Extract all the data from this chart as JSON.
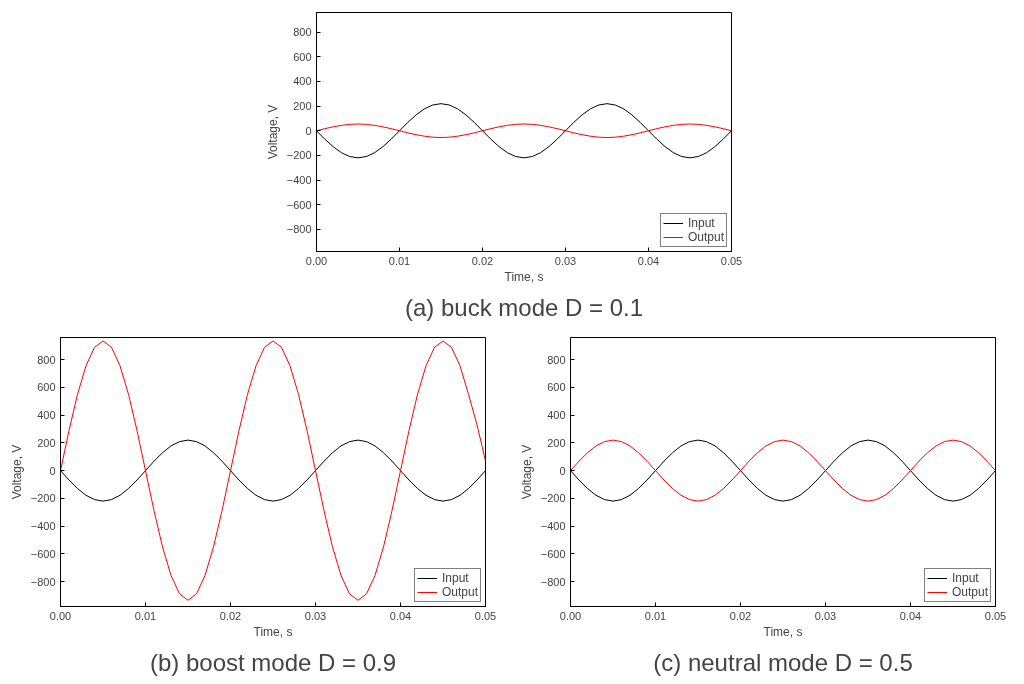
{
  "chart_data": [
    {
      "type": "line",
      "title": "(a) buck mode D = 0.1",
      "xlabel": "Time, s",
      "ylabel": "Voltage, V",
      "legend": "bottom right",
      "marker": "none",
      "line_style": "solid",
      "x": [
        0,
        0.001,
        0.002,
        0.003,
        0.004,
        0.005,
        0.006,
        0.007,
        0.008,
        0.009,
        0.01,
        0.011,
        0.012,
        0.013,
        0.014,
        0.015,
        0.016,
        0.017,
        0.018,
        0.019,
        0.02,
        0.021,
        0.022,
        0.023,
        0.024,
        0.025,
        0.026,
        0.027,
        0.028,
        0.029,
        0.03,
        0.031,
        0.032,
        0.033,
        0.034,
        0.035,
        0.036,
        0.037,
        0.038,
        0.039,
        0.04,
        0.041,
        0.042,
        0.043,
        0.044,
        0.045,
        0.046,
        0.047,
        0.048,
        0.049,
        0.05
      ],
      "series": [
        {
          "name": "Input",
          "color": "#000000",
          "values": [
            0,
            -68,
            -129,
            -178,
            -209,
            -220,
            -209,
            -178,
            -129,
            -68,
            0,
            68,
            129,
            178,
            209,
            220,
            209,
            178,
            129,
            68,
            0,
            -68,
            -129,
            -178,
            -209,
            -220,
            -209,
            -178,
            -129,
            -68,
            0,
            68,
            129,
            178,
            209,
            220,
            209,
            178,
            129,
            68,
            0,
            -68,
            -129,
            -178,
            -209,
            -220,
            -209,
            -178,
            -129,
            -68,
            0
          ]
        },
        {
          "name": "Output",
          "color": "#ff0000",
          "values": [
            0,
            17,
            32,
            44,
            52,
            55,
            52,
            44,
            32,
            17,
            0,
            -17,
            -32,
            -44,
            -52,
            -55,
            -52,
            -44,
            -32,
            -17,
            0,
            17,
            32,
            44,
            52,
            55,
            52,
            44,
            32,
            17,
            0,
            -17,
            -32,
            -44,
            -52,
            -55,
            -52,
            -44,
            -32,
            -17,
            0,
            17,
            32,
            44,
            52,
            55,
            52,
            44,
            32,
            17,
            0
          ]
        }
      ],
      "xlim": [
        0,
        0.05
      ],
      "ylim": [
        -980,
        960
      ],
      "xticks": [
        {
          "value": 0,
          "label": "0.00"
        },
        {
          "value": 0.01,
          "label": "0.01"
        },
        {
          "value": 0.02,
          "label": "0.02"
        },
        {
          "value": 0.03,
          "label": "0.03"
        },
        {
          "value": 0.04,
          "label": "0.04"
        },
        {
          "value": 0.05,
          "label": "0.05"
        }
      ],
      "yticks": [
        -800,
        -600,
        -400,
        -200,
        0,
        200,
        400,
        600,
        800
      ]
    },
    {
      "type": "line",
      "title": "(b) boost mode D = 0.9",
      "xlabel": "Time, s",
      "ylabel": "Voltage, V",
      "legend": "bottom right",
      "marker": "none",
      "line_style": "solid",
      "x": [
        0,
        0.001,
        0.002,
        0.003,
        0.004,
        0.005,
        0.006,
        0.007,
        0.008,
        0.009,
        0.01,
        0.011,
        0.012,
        0.013,
        0.014,
        0.015,
        0.016,
        0.017,
        0.018,
        0.019,
        0.02,
        0.021,
        0.022,
        0.023,
        0.024,
        0.025,
        0.026,
        0.027,
        0.028,
        0.029,
        0.03,
        0.031,
        0.032,
        0.033,
        0.034,
        0.035,
        0.036,
        0.037,
        0.038,
        0.039,
        0.04,
        0.041,
        0.042,
        0.043,
        0.044,
        0.045,
        0.046,
        0.047,
        0.048,
        0.049,
        0.05
      ],
      "series": [
        {
          "name": "Input",
          "color": "#000000",
          "values": [
            0,
            -68,
            -129,
            -178,
            -209,
            -220,
            -209,
            -178,
            -129,
            -68,
            0,
            68,
            129,
            178,
            209,
            220,
            209,
            178,
            129,
            68,
            0,
            -68,
            -129,
            -178,
            -209,
            -220,
            -209,
            -178,
            -129,
            -68,
            0,
            68,
            129,
            178,
            209,
            220,
            209,
            178,
            129,
            68,
            0,
            -68,
            -129,
            -178,
            -209,
            -220,
            -209,
            -178,
            -129,
            -68,
            0
          ]
        },
        {
          "name": "Output",
          "color": "#ff0000",
          "values": [
            0,
            289,
            550,
            756,
            889,
            935,
            889,
            756,
            550,
            289,
            0,
            -289,
            -550,
            -756,
            -889,
            -935,
            -889,
            -756,
            -550,
            -289,
            0,
            289,
            550,
            756,
            889,
            935,
            889,
            756,
            550,
            289,
            0,
            -289,
            -550,
            -756,
            -889,
            -935,
            -889,
            -756,
            -550,
            -289,
            0,
            289,
            550,
            756,
            889,
            935,
            889,
            756,
            550,
            330,
            70
          ]
        }
      ],
      "xlim": [
        0,
        0.05
      ],
      "ylim": [
        -980,
        960
      ],
      "xticks": [
        {
          "value": 0,
          "label": "0.00"
        },
        {
          "value": 0.01,
          "label": "0.01"
        },
        {
          "value": 0.02,
          "label": "0.02"
        },
        {
          "value": 0.03,
          "label": "0.03"
        },
        {
          "value": 0.04,
          "label": "0.04"
        },
        {
          "value": 0.05,
          "label": "0.05"
        }
      ],
      "yticks": [
        -800,
        -600,
        -400,
        -200,
        0,
        200,
        400,
        600,
        800
      ]
    },
    {
      "type": "line",
      "title": "(c) neutral mode D = 0.5",
      "xlabel": "Time, s",
      "ylabel": "Voltage, V",
      "legend": "bottom right",
      "marker": "none",
      "line_style": "solid",
      "x": [
        0,
        0.001,
        0.002,
        0.003,
        0.004,
        0.005,
        0.006,
        0.007,
        0.008,
        0.009,
        0.01,
        0.011,
        0.012,
        0.013,
        0.014,
        0.015,
        0.016,
        0.017,
        0.018,
        0.019,
        0.02,
        0.021,
        0.022,
        0.023,
        0.024,
        0.025,
        0.026,
        0.027,
        0.028,
        0.029,
        0.03,
        0.031,
        0.032,
        0.033,
        0.034,
        0.035,
        0.036,
        0.037,
        0.038,
        0.039,
        0.04,
        0.041,
        0.042,
        0.043,
        0.044,
        0.045,
        0.046,
        0.047,
        0.048,
        0.049,
        0.05
      ],
      "series": [
        {
          "name": "Input",
          "color": "#000000",
          "values": [
            0,
            -68,
            -129,
            -178,
            -209,
            -220,
            -209,
            -178,
            -129,
            -68,
            0,
            68,
            129,
            178,
            209,
            220,
            209,
            178,
            129,
            68,
            0,
            -68,
            -129,
            -178,
            -209,
            -220,
            -209,
            -178,
            -129,
            -68,
            0,
            68,
            129,
            178,
            209,
            220,
            209,
            178,
            129,
            68,
            0,
            -68,
            -129,
            -178,
            -209,
            -220,
            -209,
            -178,
            -129,
            -68,
            0
          ]
        },
        {
          "name": "Output",
          "color": "#ff0000",
          "values": [
            0,
            68,
            129,
            178,
            209,
            220,
            209,
            178,
            129,
            68,
            0,
            -68,
            -129,
            -178,
            -209,
            -220,
            -209,
            -178,
            -129,
            -68,
            0,
            68,
            129,
            178,
            209,
            220,
            209,
            178,
            129,
            68,
            0,
            -68,
            -129,
            -178,
            -209,
            -220,
            -209,
            -178,
            -129,
            -68,
            0,
            68,
            129,
            178,
            209,
            220,
            209,
            178,
            129,
            68,
            0
          ]
        }
      ],
      "xlim": [
        0,
        0.05
      ],
      "ylim": [
        -980,
        960
      ],
      "xticks": [
        {
          "value": 0,
          "label": "0.00"
        },
        {
          "value": 0.01,
          "label": "0.01"
        },
        {
          "value": 0.02,
          "label": "0.02"
        },
        {
          "value": 0.03,
          "label": "0.03"
        },
        {
          "value": 0.04,
          "label": "0.04"
        },
        {
          "value": 0.05,
          "label": "0.05"
        }
      ],
      "yticks": [
        -800,
        -600,
        -400,
        -200,
        0,
        200,
        400,
        600,
        800
      ]
    }
  ]
}
